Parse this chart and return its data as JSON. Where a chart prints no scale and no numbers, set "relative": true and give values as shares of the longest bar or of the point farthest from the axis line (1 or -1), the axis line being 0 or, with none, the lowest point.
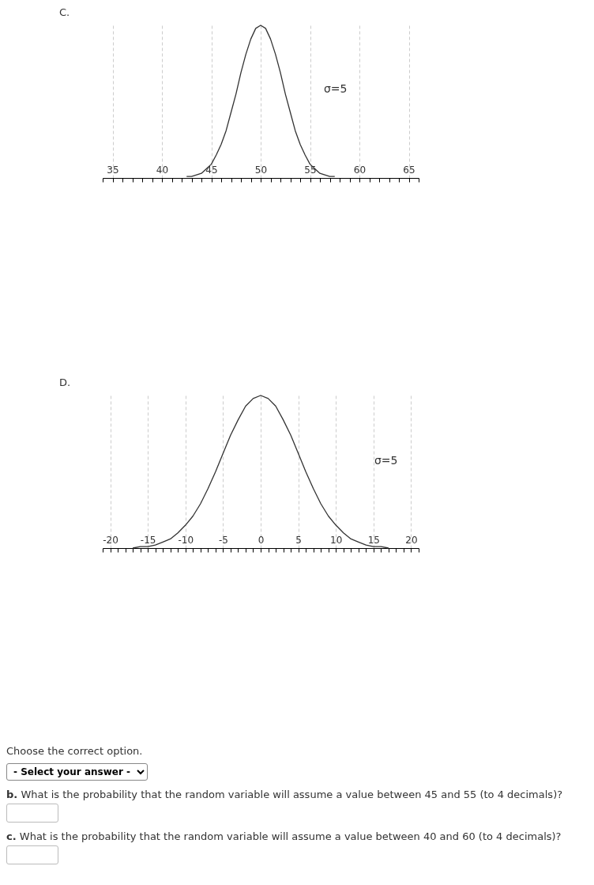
{
  "chart_data": [
    {
      "type": "line",
      "title": "C.",
      "relative": true,
      "grid": "x",
      "line_style": "solid",
      "xlim": [
        34,
        66
      ],
      "xticks": [
        {
          "value": 34,
          "label": null
        },
        35,
        {
          "value": 36,
          "label": null
        },
        {
          "value": 37,
          "label": null
        },
        {
          "value": 38,
          "label": null
        },
        {
          "value": 39,
          "label": null
        },
        40,
        {
          "value": 41,
          "label": null
        },
        {
          "value": 42,
          "label": null
        },
        {
          "value": 43,
          "label": null
        },
        {
          "value": 44,
          "label": null
        },
        45,
        {
          "value": 46,
          "label": null
        },
        {
          "value": 47,
          "label": null
        },
        {
          "value": 48,
          "label": null
        },
        {
          "value": 49,
          "label": null
        },
        50,
        {
          "value": 51,
          "label": null
        },
        {
          "value": 52,
          "label": null
        },
        {
          "value": 53,
          "label": null
        },
        {
          "value": 54,
          "label": null
        },
        55,
        {
          "value": 56,
          "label": null
        },
        {
          "value": 57,
          "label": null
        },
        {
          "value": 58,
          "label": null
        },
        {
          "value": 59,
          "label": null
        },
        60,
        {
          "value": 61,
          "label": null
        },
        {
          "value": 62,
          "label": null
        },
        {
          "value": 63,
          "label": null
        },
        {
          "value": 64,
          "label": null
        },
        65,
        {
          "value": 66,
          "label": null
        }
      ],
      "x": [
        42.5,
        43,
        43.5,
        44,
        44.5,
        45,
        45.5,
        46,
        46.5,
        47,
        47.5,
        48,
        48.5,
        49,
        49.5,
        50,
        50.5,
        51,
        51.5,
        52,
        52.5,
        53,
        53.5,
        54,
        54.5,
        55,
        55.5,
        56,
        56.5,
        57,
        57.5
      ],
      "series": [
        {
          "color": "#333333",
          "values": [
            0.01,
            0.01,
            0.02,
            0.03,
            0.06,
            0.09,
            0.15,
            0.22,
            0.31,
            0.43,
            0.55,
            0.69,
            0.81,
            0.91,
            0.98,
            1,
            0.98,
            0.91,
            0.81,
            0.69,
            0.55,
            0.43,
            0.31,
            0.22,
            0.15,
            0.09,
            0.06,
            0.03,
            0.02,
            0.01,
            0.01
          ]
        }
      ],
      "annotations": [
        "σ=5"
      ]
    },
    {
      "type": "line",
      "title": "D.",
      "relative": true,
      "grid": "x",
      "line_style": "solid",
      "xlim": [
        -21,
        21
      ],
      "xticks": [
        {
          "value": -21,
          "label": null
        },
        -20,
        {
          "value": -19,
          "label": null
        },
        {
          "value": -18,
          "label": null
        },
        {
          "value": -17,
          "label": null
        },
        {
          "value": -16,
          "label": null
        },
        -15,
        {
          "value": -14,
          "label": null
        },
        {
          "value": -13,
          "label": null
        },
        {
          "value": -12,
          "label": null
        },
        {
          "value": -11,
          "label": null
        },
        -10,
        {
          "value": -9,
          "label": null
        },
        {
          "value": -8,
          "label": null
        },
        {
          "value": -7,
          "label": null
        },
        {
          "value": -6,
          "label": null
        },
        -5,
        {
          "value": -4,
          "label": null
        },
        {
          "value": -3,
          "label": null
        },
        {
          "value": -2,
          "label": null
        },
        {
          "value": -1,
          "label": null
        },
        0,
        {
          "value": 1,
          "label": null
        },
        {
          "value": 2,
          "label": null
        },
        {
          "value": 3,
          "label": null
        },
        {
          "value": 4,
          "label": null
        },
        5,
        {
          "value": 6,
          "label": null
        },
        {
          "value": 7,
          "label": null
        },
        {
          "value": 8,
          "label": null
        },
        {
          "value": 9,
          "label": null
        },
        10,
        {
          "value": 11,
          "label": null
        },
        {
          "value": 12,
          "label": null
        },
        {
          "value": 13,
          "label": null
        },
        {
          "value": 14,
          "label": null
        },
        15,
        {
          "value": 16,
          "label": null
        },
        {
          "value": 17,
          "label": null
        },
        {
          "value": 18,
          "label": null
        },
        {
          "value": 19,
          "label": null
        },
        20,
        {
          "value": 21,
          "label": null
        }
      ],
      "x": [
        -17,
        -16,
        -15,
        -14,
        -13,
        -12,
        -11,
        -10,
        -9,
        -8,
        -7,
        -6,
        -5,
        -4,
        -3,
        -2,
        -1,
        0,
        1,
        2,
        3,
        4,
        5,
        6,
        7,
        8,
        9,
        10,
        11,
        12,
        13,
        14,
        15,
        16,
        17
      ],
      "series": [
        {
          "color": "#333333",
          "values": [
            0,
            0.01,
            0.01,
            0.02,
            0.04,
            0.06,
            0.1,
            0.15,
            0.21,
            0.29,
            0.39,
            0.5,
            0.62,
            0.74,
            0.84,
            0.93,
            0.98,
            1,
            0.98,
            0.93,
            0.84,
            0.74,
            0.62,
            0.5,
            0.39,
            0.29,
            0.21,
            0.15,
            0.1,
            0.06,
            0.04,
            0.02,
            0.01,
            0.01,
            0
          ]
        }
      ],
      "annotations": [
        "σ=5",
        "Choose the correct option.",
        "- Select your answer -",
        "b. What is the probability that the random variable will assume a value between 45 and 55 (to 4 decimals)?",
        "c. What is the probability that the random variable will assume a value between 40 and 60 (to 4 decimals)?"
      ]
    }
  ]
}
